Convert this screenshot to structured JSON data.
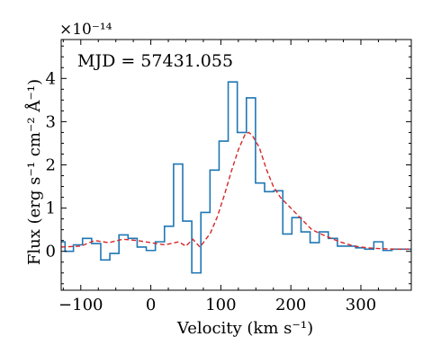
{
  "chart_data": {
    "type": "line",
    "annotation": "MJD = 57431.055",
    "xlabel": "Velocity (km s⁻¹)",
    "ylabel": "Flux (erg s⁻¹ cm⁻² Å⁻¹)",
    "y_multiplier": "×10⁻¹⁴",
    "xlim": [
      -128,
      372
    ],
    "ylim": [
      -0.9,
      4.9
    ],
    "x_ticks": [
      -100,
      0,
      100,
      200,
      300
    ],
    "x_tick_labels": [
      "−100",
      "0",
      "100",
      "200",
      "300"
    ],
    "y_ticks": [
      0,
      1,
      2,
      3,
      4
    ],
    "y_tick_labels": [
      "0",
      "1",
      "2",
      "3",
      "4"
    ],
    "grid": false,
    "series": [
      {
        "style": "steps-mid",
        "color": "#1f77b4",
        "x": [
          -128,
          -117,
          -104,
          -91,
          -78,
          -65,
          -52,
          -39,
          -26,
          -13,
          0,
          13,
          26,
          39,
          52,
          65,
          78,
          91,
          104,
          117,
          130,
          143,
          156,
          169,
          182,
          195,
          208,
          221,
          234,
          247,
          260,
          273,
          286,
          299,
          312,
          325,
          338,
          351,
          364,
          372
        ],
        "y": [
          0.22,
          0.0,
          0.15,
          0.3,
          0.18,
          -0.2,
          -0.05,
          0.38,
          0.3,
          0.1,
          0.02,
          0.22,
          0.58,
          2.02,
          0.7,
          -0.5,
          0.9,
          1.88,
          2.55,
          3.92,
          2.75,
          3.55,
          1.58,
          1.38,
          1.4,
          0.4,
          0.78,
          0.45,
          0.2,
          0.45,
          0.3,
          0.12,
          0.12,
          0.08,
          0.05,
          0.22,
          0.02,
          0.05,
          0.05,
          0.05
        ]
      },
      {
        "style": "dashed",
        "color": "#d62728",
        "x": [
          -128,
          -100,
          -80,
          -60,
          -40,
          -20,
          0,
          20,
          40,
          50,
          60,
          70,
          75,
          85,
          95,
          105,
          115,
          125,
          135,
          140,
          145,
          155,
          165,
          175,
          185,
          200,
          215,
          230,
          250,
          270,
          290,
          310,
          330,
          350,
          372
        ],
        "y": [
          0.1,
          0.12,
          0.25,
          0.2,
          0.28,
          0.25,
          0.2,
          0.15,
          0.22,
          0.12,
          0.28,
          0.1,
          0.2,
          0.42,
          0.8,
          1.3,
          1.85,
          2.35,
          2.72,
          2.75,
          2.68,
          2.4,
          1.9,
          1.5,
          1.25,
          1.0,
          0.75,
          0.5,
          0.35,
          0.22,
          0.12,
          0.08,
          0.06,
          0.05,
          0.05
        ]
      }
    ]
  }
}
